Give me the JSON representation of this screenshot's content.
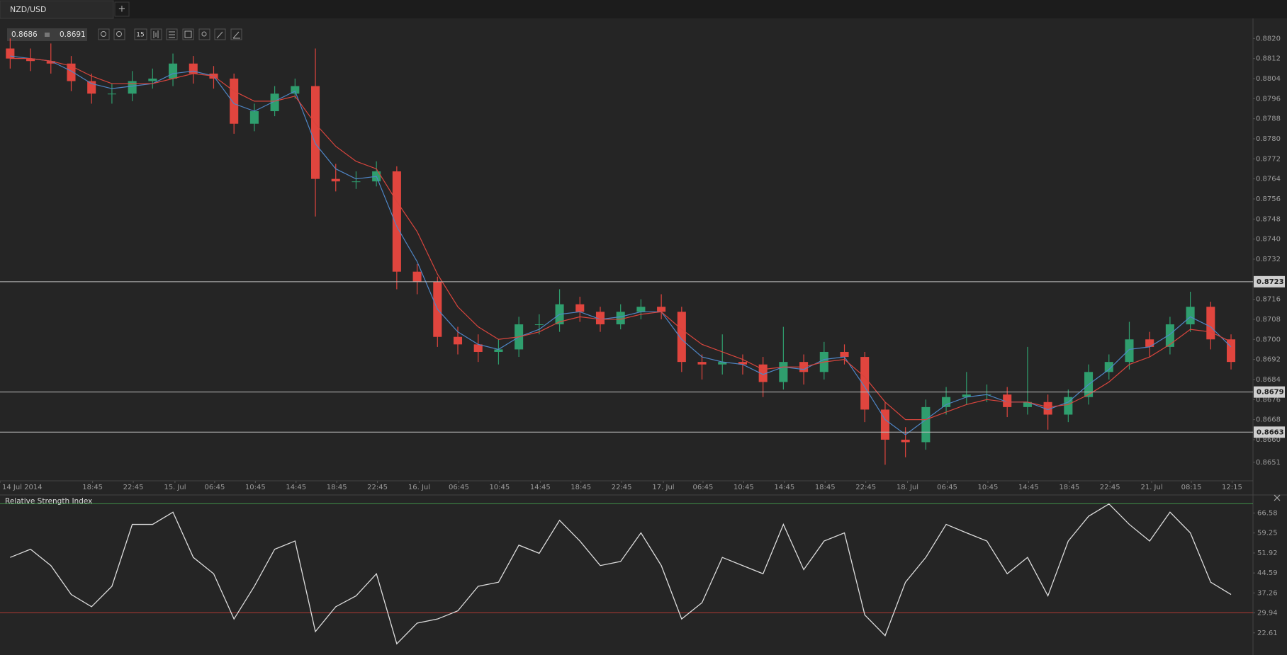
{
  "tab": {
    "label": "NZD/USD",
    "add": "+"
  },
  "quote": {
    "bid": 0.8686,
    "ask": 0.8691
  },
  "toolbar": {
    "timeframe": 15
  },
  "chart_data": {
    "type": "candlestick",
    "up_color": "#2f9e6e",
    "down_color": "#e0453e",
    "x": [
      0.5,
      1.5,
      2.5,
      3.5,
      4.5,
      5.5,
      6.5,
      7.5,
      8.5,
      9.5,
      10.5,
      11.5,
      12.5,
      13.5,
      14.5,
      15.5,
      16.5,
      17.5,
      18.5,
      19.5,
      20.5,
      21.5,
      22.5,
      23.5,
      24.5,
      25.5,
      26.5,
      27.5,
      28.5,
      29.5,
      30.5,
      31.5,
      32.5,
      33.5,
      34.5,
      35.5,
      36.5,
      37.5,
      38.5,
      39.5,
      40.5,
      41.5,
      42.5,
      43.5,
      44.5,
      45.5,
      46.5,
      47.5,
      48.5,
      49.5,
      50.5,
      51.5,
      52.5,
      53.5,
      54.5,
      55.5,
      56.5,
      57.5,
      58.5,
      59.5,
      60.5
    ],
    "open": [
      0.8816,
      0.8812,
      0.8811,
      0.881,
      0.8803,
      0.8798,
      0.8798,
      0.8803,
      0.8804,
      0.881,
      0.8806,
      0.8804,
      0.8786,
      0.8791,
      0.8798,
      0.8801,
      0.8764,
      0.8763,
      0.8763,
      0.8767,
      0.8727,
      0.8723,
      0.8701,
      0.8698,
      0.8695,
      0.8696,
      0.8706,
      0.8706,
      0.8714,
      0.8711,
      0.8706,
      0.8711,
      0.8713,
      0.8711,
      0.8691,
      0.869,
      0.8691,
      0.869,
      0.8683,
      0.8691,
      0.8687,
      0.8695,
      0.8693,
      0.8672,
      0.866,
      0.8659,
      0.8673,
      0.8677,
      0.8678,
      0.8678,
      0.8673,
      0.8675,
      0.867,
      0.8677,
      0.8687,
      0.8691,
      0.87,
      0.8697,
      0.8706,
      0.8713,
      0.87
    ],
    "high": [
      0.882,
      0.8816,
      0.8818,
      0.8813,
      0.8806,
      0.8802,
      0.8807,
      0.8808,
      0.8814,
      0.8813,
      0.8809,
      0.8806,
      0.8794,
      0.8801,
      0.8804,
      0.8816,
      0.877,
      0.8767,
      0.8771,
      0.8769,
      0.873,
      0.8725,
      0.8705,
      0.8702,
      0.87,
      0.8709,
      0.871,
      0.872,
      0.8717,
      0.8713,
      0.8714,
      0.8716,
      0.8718,
      0.8713,
      0.8694,
      0.8702,
      0.8694,
      0.8693,
      0.8705,
      0.8694,
      0.8699,
      0.8698,
      0.8695,
      0.8675,
      0.8665,
      0.8676,
      0.8681,
      0.8687,
      0.8682,
      0.8681,
      0.8697,
      0.8678,
      0.868,
      0.869,
      0.8694,
      0.8707,
      0.8703,
      0.8709,
      0.8719,
      0.8715,
      0.8702
    ],
    "low": [
      0.8808,
      0.8807,
      0.8806,
      0.8799,
      0.8794,
      0.8794,
      0.8795,
      0.88,
      0.8801,
      0.8802,
      0.88,
      0.8782,
      0.8783,
      0.8789,
      0.8796,
      0.8749,
      0.8759,
      0.876,
      0.8761,
      0.872,
      0.8718,
      0.8697,
      0.8694,
      0.8691,
      0.869,
      0.8693,
      0.8702,
      0.8703,
      0.8707,
      0.8703,
      0.8704,
      0.8708,
      0.8708,
      0.8687,
      0.8684,
      0.8686,
      0.8686,
      0.8677,
      0.868,
      0.8682,
      0.8684,
      0.869,
      0.8667,
      0.865,
      0.8653,
      0.8656,
      0.867,
      0.8674,
      0.8675,
      0.8669,
      0.867,
      0.8664,
      0.8667,
      0.8674,
      0.8684,
      0.8688,
      0.8693,
      0.8694,
      0.8703,
      0.8696,
      0.8688
    ],
    "close": [
      0.8812,
      0.8811,
      0.881,
      0.8803,
      0.8798,
      0.8798,
      0.8803,
      0.8804,
      0.881,
      0.8806,
      0.8804,
      0.8786,
      0.8791,
      0.8798,
      0.8801,
      0.8764,
      0.8763,
      0.8763,
      0.8767,
      0.8727,
      0.8723,
      0.8701,
      0.8698,
      0.8695,
      0.8696,
      0.8706,
      0.8706,
      0.8714,
      0.8711,
      0.8706,
      0.8711,
      0.8713,
      0.8711,
      0.8691,
      0.869,
      0.8691,
      0.869,
      0.8683,
      0.8691,
      0.8687,
      0.8695,
      0.8693,
      0.8672,
      0.866,
      0.8659,
      0.8673,
      0.8677,
      0.8678,
      0.8678,
      0.8673,
      0.8675,
      0.867,
      0.8677,
      0.8687,
      0.8691,
      0.87,
      0.8697,
      0.8706,
      0.8713,
      0.87,
      0.8691
    ],
    "overlays": [
      {
        "color": "#4f86c6",
        "values": [
          0.8813,
          0.8812,
          0.8811,
          0.8807,
          0.8802,
          0.88,
          0.8801,
          0.8802,
          0.8806,
          0.8807,
          0.8805,
          0.8794,
          0.8791,
          0.8795,
          0.8799,
          0.8778,
          0.8768,
          0.8764,
          0.8765,
          0.8745,
          0.8731,
          0.8712,
          0.8703,
          0.8698,
          0.8696,
          0.8701,
          0.8704,
          0.871,
          0.8711,
          0.8708,
          0.8709,
          0.8711,
          0.8711,
          0.87,
          0.8693,
          0.8691,
          0.869,
          0.8686,
          0.8689,
          0.8688,
          0.8692,
          0.8693,
          0.8681,
          0.8668,
          0.8662,
          0.8668,
          0.8674,
          0.8677,
          0.8678,
          0.8675,
          0.8675,
          0.8672,
          0.8675,
          0.8682,
          0.8688,
          0.8696,
          0.8697,
          0.8702,
          0.8709,
          0.8705,
          0.8697
        ]
      },
      {
        "color": "#d9453d",
        "values": [
          0.8812,
          0.8812,
          0.8811,
          0.8809,
          0.8805,
          0.8802,
          0.8802,
          0.8802,
          0.8804,
          0.8806,
          0.8805,
          0.8799,
          0.8795,
          0.8795,
          0.8797,
          0.8786,
          0.8777,
          0.8771,
          0.8768,
          0.8755,
          0.8743,
          0.8726,
          0.8713,
          0.8705,
          0.87,
          0.8701,
          0.8703,
          0.8707,
          0.8709,
          0.8708,
          0.8708,
          0.871,
          0.8711,
          0.8704,
          0.8698,
          0.8695,
          0.8692,
          0.8688,
          0.8689,
          0.8689,
          0.8691,
          0.8692,
          0.8685,
          0.8675,
          0.8668,
          0.8668,
          0.8671,
          0.8674,
          0.8676,
          0.8675,
          0.8675,
          0.8673,
          0.8674,
          0.8678,
          0.8683,
          0.869,
          0.8693,
          0.8698,
          0.8704,
          0.8703,
          0.8699
        ]
      }
    ],
    "hlines": [
      0.8723,
      0.8679,
      0.8663
    ],
    "ylim": [
      0.86436,
      0.8828
    ],
    "yticks": [
      {
        "value": 0.882,
        "label": "0.8820"
      },
      0.8812,
      0.8804,
      0.8796,
      0.8788,
      {
        "value": 0.878,
        "label": "0.8780"
      },
      0.8772,
      0.8764,
      0.8756,
      0.8748,
      {
        "value": 0.874,
        "label": "0.8740"
      },
      0.8732,
      0.8716,
      0.8708,
      {
        "value": 0.87,
        "label": "0.8700"
      },
      0.8692,
      0.8684,
      0.8676,
      0.8668,
      {
        "value": 0.866,
        "label": "0.8660"
      },
      0.8651
    ],
    "xlim": [
      0,
      61.3
    ],
    "xticks": [
      {
        "value": 0,
        "label": "14 Jul 2014"
      },
      {
        "value": 4.55,
        "label": "18:45"
      },
      {
        "value": 6.55,
        "label": "22:45"
      },
      {
        "value": 8.6,
        "label": "15. Jul"
      },
      {
        "value": 10.55,
        "label": "06:45"
      },
      {
        "value": 12.55,
        "label": "10:45"
      },
      {
        "value": 14.55,
        "label": "14:45"
      },
      {
        "value": 16.55,
        "label": "18:45"
      },
      {
        "value": 18.55,
        "label": "22:45"
      },
      {
        "value": 20.6,
        "label": "16. Jul"
      },
      {
        "value": 22.55,
        "label": "06:45"
      },
      {
        "value": 24.55,
        "label": "10:45"
      },
      {
        "value": 26.55,
        "label": "14:45"
      },
      {
        "value": 28.55,
        "label": "18:45"
      },
      {
        "value": 30.55,
        "label": "22:45"
      },
      {
        "value": 32.6,
        "label": "17. Jul"
      },
      {
        "value": 34.55,
        "label": "06:45"
      },
      {
        "value": 36.55,
        "label": "10:45"
      },
      {
        "value": 38.55,
        "label": "14:45"
      },
      {
        "value": 40.55,
        "label": "18:45"
      },
      {
        "value": 42.55,
        "label": "22:45"
      },
      {
        "value": 44.6,
        "label": "18. Jul"
      },
      {
        "value": 46.55,
        "label": "06:45"
      },
      {
        "value": 48.55,
        "label": "10:45"
      },
      {
        "value": 50.55,
        "label": "14:45"
      },
      {
        "value": 52.55,
        "label": "18:45"
      },
      {
        "value": 54.55,
        "label": "22:45"
      },
      {
        "value": 56.6,
        "label": "21. Jul"
      },
      {
        "value": 58.55,
        "label": "08:15"
      },
      {
        "value": 60.55,
        "label": "12:15"
      }
    ],
    "indicator": {
      "type": "line",
      "title": "Relative Strength Index",
      "color": "#dcdcdc",
      "values": [
        50.3,
        53.3,
        47.3,
        36.7,
        32.2,
        39.7,
        62.4,
        62.4,
        66.9,
        50.3,
        44.3,
        27.7,
        39.7,
        53.3,
        56.3,
        23.1,
        32.2,
        36.2,
        44.3,
        18.6,
        26.2,
        27.7,
        30.7,
        39.7,
        41.2,
        54.8,
        51.8,
        63.9,
        56.3,
        47.3,
        48.8,
        59.3,
        47.3,
        27.7,
        33.7,
        50.3,
        47.3,
        44.3,
        62.4,
        45.8,
        56.3,
        59.3,
        29.2,
        21.6,
        41.2,
        50.3,
        62.4,
        59.3,
        56.3,
        44.3,
        50.3,
        36.2,
        56.3,
        65.4,
        69.9,
        62.4,
        56.3,
        66.9,
        59.3,
        41.2,
        36.7
      ],
      "levels": [
        70,
        30
      ],
      "level_colors": [
        "#3f8f4a",
        "#b03a34"
      ],
      "ylim": [
        14.5,
        73.2
      ],
      "yticks": [
        66.58,
        59.25,
        51.92,
        44.59,
        37.26,
        29.94,
        22.61
      ]
    }
  }
}
